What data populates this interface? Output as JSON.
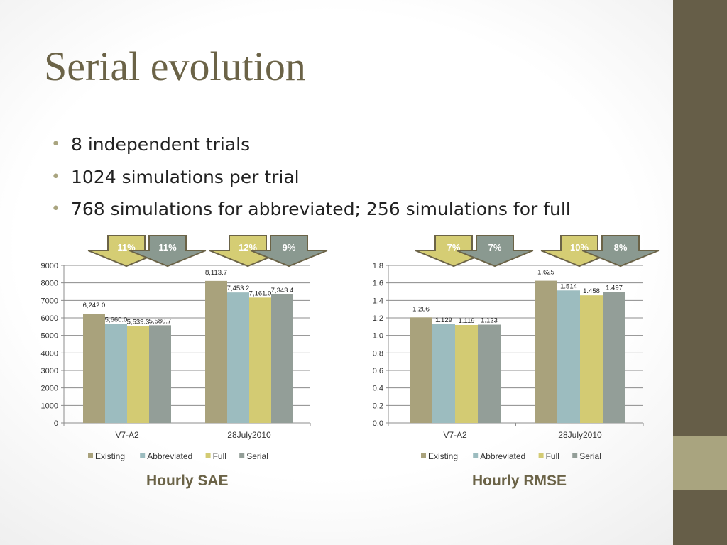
{
  "slide": {
    "title": "Serial evolution",
    "bullets": [
      "8 independent trials",
      "1024 simulations per trial",
      "768 simulations for abbreviated; 256 simulations for full"
    ]
  },
  "colors": {
    "Existing": "#a9a27c",
    "Abbreviated": "#9cbcbf",
    "Full": "#d3cb73",
    "Serial": "#939e98",
    "arrow_gold": "#d5cd74",
    "arrow_grey": "#8a9990",
    "arrow_border": "#6b6347",
    "sidebar": "#665e48",
    "sidebar_accent": "#a9a47f",
    "title": "#6b6347"
  },
  "chart_data": [
    {
      "type": "bar",
      "title": "Hourly SAE",
      "categories": [
        "V7-A2",
        "28July2010"
      ],
      "series": [
        {
          "name": "Existing",
          "values": [
            6242.0,
            8113.7
          ],
          "labels": [
            "6,242.0",
            "8,113.7"
          ]
        },
        {
          "name": "Abbreviated",
          "values": [
            5660.0,
            7453.2
          ],
          "labels": [
            "5,660.0",
            "7,453.2"
          ]
        },
        {
          "name": "Full",
          "values": [
            5539.3,
            7161.0
          ],
          "labels": [
            "5,539.3",
            "7,161.0"
          ]
        },
        {
          "name": "Serial",
          "values": [
            5580.7,
            7343.4
          ],
          "labels": [
            "5,580.7",
            "7,343.4"
          ]
        }
      ],
      "ylim": [
        0,
        9000
      ],
      "yticks": [
        "9000",
        "8000",
        "7000",
        "6000",
        "5000",
        "4000",
        "3000",
        "2000",
        "1000",
        "0"
      ],
      "grid": true,
      "legend": "bottom",
      "callouts": [
        {
          "text": "11%",
          "style": "gold",
          "group": "V7-A2"
        },
        {
          "text": "11%",
          "style": "grey",
          "group": "V7-A2"
        },
        {
          "text": "12%",
          "style": "gold",
          "group": "28July2010"
        },
        {
          "text": "9%",
          "style": "grey",
          "group": "28July2010"
        }
      ]
    },
    {
      "type": "bar",
      "title": "Hourly RMSE",
      "categories": [
        "V7-A2",
        "28July2010"
      ],
      "series": [
        {
          "name": "Existing",
          "values": [
            1.206,
            1.625
          ],
          "labels": [
            "1.206",
            "1.625"
          ]
        },
        {
          "name": "Abbreviated",
          "values": [
            1.129,
            1.514
          ],
          "labels": [
            "1.129",
            "1.514"
          ]
        },
        {
          "name": "Full",
          "values": [
            1.119,
            1.458
          ],
          "labels": [
            "1.119",
            "1.458"
          ]
        },
        {
          "name": "Serial",
          "values": [
            1.123,
            1.497
          ],
          "labels": [
            "1.123",
            "1.497"
          ]
        }
      ],
      "ylim": [
        0,
        1.8
      ],
      "yticks": [
        "1.8",
        "1.6",
        "1.4",
        "1.2",
        "1.0",
        "0.8",
        "0.6",
        "0.4",
        "0.2",
        "0.0"
      ],
      "grid": true,
      "legend": "bottom",
      "callouts": [
        {
          "text": "7%",
          "style": "gold",
          "group": "V7-A2"
        },
        {
          "text": "7%",
          "style": "grey",
          "group": "V7-A2"
        },
        {
          "text": "10%",
          "style": "gold",
          "group": "28July2010"
        },
        {
          "text": "8%",
          "style": "grey",
          "group": "28July2010"
        }
      ]
    }
  ]
}
